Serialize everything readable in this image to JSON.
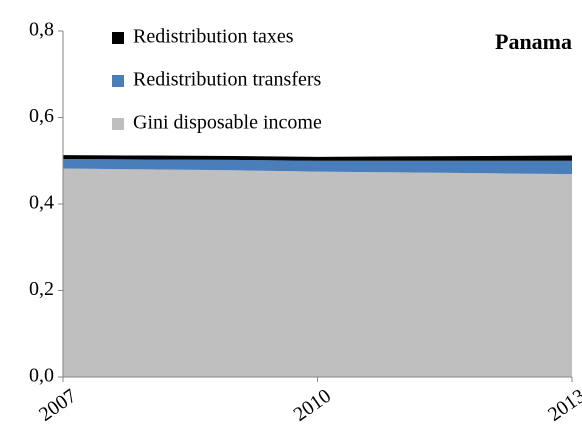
{
  "chart_data": {
    "type": "stacked_area",
    "title": "Panama",
    "x": [
      2007,
      2008,
      2009,
      2010,
      2011,
      2012,
      2013
    ],
    "series": [
      {
        "name": "Gini disposable income",
        "color": "#bfbfbf",
        "values": [
          0.482,
          0.48,
          0.478,
          0.475,
          0.473,
          0.471,
          0.469
        ]
      },
      {
        "name": "Redistribution transfers",
        "color": "#4a7ebb",
        "values": [
          0.022,
          0.023,
          0.024,
          0.025,
          0.027,
          0.029,
          0.031
        ]
      },
      {
        "name": "Redistribution taxes",
        "color": "#000000",
        "values": [
          0.009,
          0.009,
          0.009,
          0.009,
          0.01,
          0.011,
          0.012
        ]
      }
    ],
    "xlim": [
      2007,
      2013
    ],
    "xticks": [
      2007,
      2010,
      2013
    ],
    "ylim": [
      0,
      0.8
    ],
    "yticks": [
      {
        "value": 0,
        "label": "0,0"
      },
      {
        "value": 0.2,
        "label": "0,2"
      },
      {
        "value": 0.4,
        "label": "0,4"
      },
      {
        "value": 0.6,
        "label": "0,6"
      },
      {
        "value": 0.8,
        "label": "0,8"
      }
    ]
  }
}
